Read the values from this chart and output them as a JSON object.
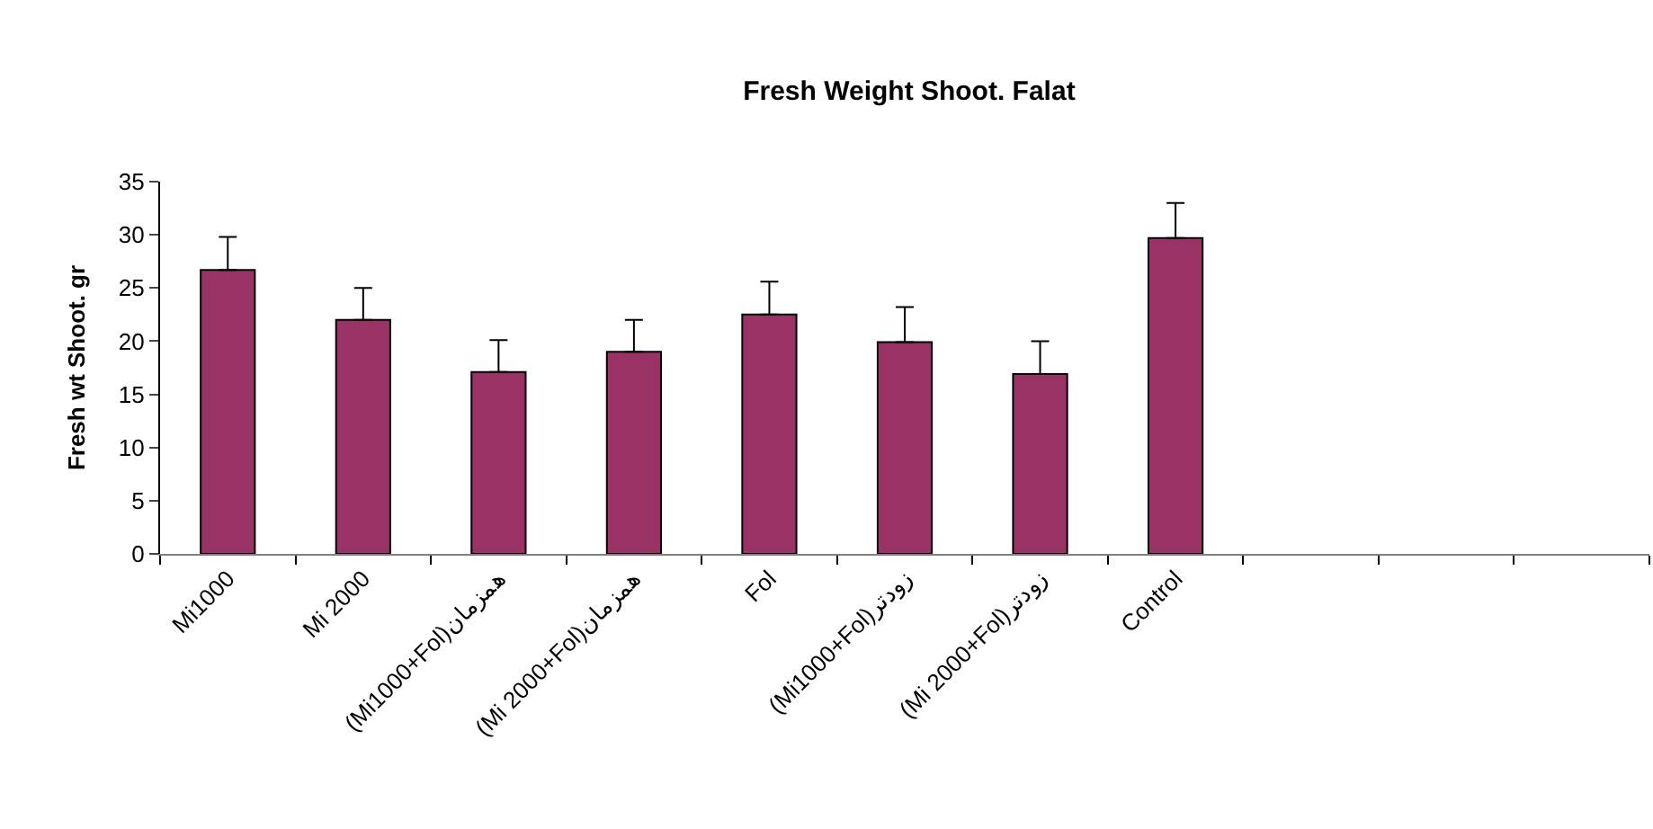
{
  "chart_data": {
    "type": "bar",
    "title": "Fresh Weight Shoot. Falat",
    "ylabel": "Fresh wt Shoot. gr",
    "categories": [
      "Mi1000",
      "Mi 2000",
      "(Mi1000+Fol)همزمان",
      "(Mi 2000+Fol)همزمان",
      "Fol",
      "(Mi1000+Fol)زودتر",
      "(Mi 2000+Fol)زودتر",
      "Control",
      null,
      null,
      null
    ],
    "values": [
      26.7,
      22.0,
      17.1,
      19.0,
      22.5,
      19.9,
      16.9,
      29.7,
      null,
      null,
      null
    ],
    "errors": [
      [
        26.7,
        29.8
      ],
      [
        22.0,
        25.0
      ],
      [
        17.1,
        20.1
      ],
      [
        19.0,
        22.0
      ],
      [
        22.5,
        25.6
      ],
      [
        19.9,
        23.2
      ],
      [
        16.9,
        20.0
      ],
      [
        29.7,
        33.0
      ],
      null,
      null,
      null
    ],
    "color": "#993366",
    "ylim": [
      0,
      35
    ],
    "yticks": [
      0,
      5,
      10,
      15,
      20,
      25,
      30,
      35
    ]
  }
}
